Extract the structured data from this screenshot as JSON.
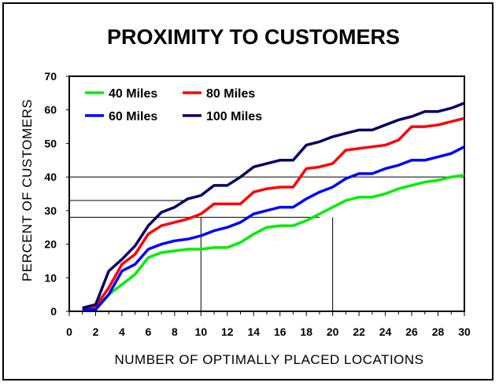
{
  "chart_data": {
    "type": "line",
    "title": "PROXIMITY TO CUSTOMERS",
    "xlabel": "NUMBER OF OPTIMALLY PLACED LOCATIONS",
    "ylabel": "PERCENT OF CUSTOMERS",
    "xlim": [
      0,
      30
    ],
    "ylim": [
      0,
      70
    ],
    "xticks": [
      "0",
      "2",
      "4",
      "6",
      "8",
      "10",
      "12",
      "14",
      "16",
      "18",
      "20",
      "22",
      "24",
      "26",
      "28",
      "30"
    ],
    "yticks": [
      "0",
      "10",
      "20",
      "30",
      "40",
      "50",
      "60",
      "70"
    ],
    "grid": false,
    "legend_position": "top-left",
    "x": [
      1,
      2,
      3,
      4,
      5,
      6,
      7,
      8,
      9,
      10,
      11,
      12,
      13,
      14,
      15,
      16,
      17,
      18,
      19,
      20,
      21,
      22,
      23,
      24,
      25,
      26,
      27,
      28,
      29,
      30
    ],
    "series": [
      {
        "name": "40 Miles",
        "color": "#00ee00",
        "values": [
          0.5,
          1,
          5,
          8,
          11,
          16,
          17.5,
          18,
          18.5,
          18.5,
          19,
          19,
          20.5,
          23,
          25,
          25.5,
          25.5,
          27,
          29,
          31,
          33,
          34,
          34,
          35,
          36.5,
          37.5,
          38.5,
          39,
          40,
          40.5
        ]
      },
      {
        "name": "80 Miles",
        "color": "#ff0000",
        "values": [
          1,
          1.5,
          7,
          14,
          17,
          23,
          25.5,
          26.5,
          27.5,
          29,
          32,
          32,
          32,
          35.5,
          36.5,
          37,
          37,
          42.5,
          43,
          44,
          48,
          48.5,
          49,
          49.5,
          51,
          55,
          55,
          55.5,
          56.5,
          57.5
        ]
      },
      {
        "name": "60 Miles",
        "color": "#0000ff",
        "values": [
          0.5,
          0.5,
          5,
          12,
          14,
          18.5,
          20,
          21,
          21.5,
          22.5,
          24,
          25,
          26.5,
          29,
          30,
          31,
          31,
          33.5,
          35.5,
          37,
          39.5,
          41,
          41,
          42.5,
          43.5,
          45,
          45,
          46,
          47,
          49
        ]
      },
      {
        "name": "100 Miles",
        "color": "#000066",
        "values": [
          1,
          2,
          12,
          15.5,
          19.5,
          25.5,
          29.5,
          31,
          33.5,
          34.5,
          37.5,
          37.5,
          40,
          43,
          44,
          45,
          45,
          49.5,
          50.5,
          52,
          53,
          54,
          54,
          55.5,
          57,
          58,
          59.5,
          59.5,
          60.5,
          62
        ]
      }
    ],
    "reference_lines": [
      {
        "type": "horizontal",
        "y": 40,
        "x_start": 0,
        "x_end": 30
      },
      {
        "type": "horizontal",
        "y": 33,
        "x_start": 0,
        "x_end": 9
      },
      {
        "type": "horizontal",
        "y": 28,
        "x_start": 0,
        "x_end": 19
      },
      {
        "type": "vertical",
        "x": 10,
        "y_start": 0,
        "y_end": 28
      },
      {
        "type": "vertical",
        "x": 20,
        "y_start": 0,
        "y_end": 28
      },
      {
        "type": "vertical",
        "x": 30,
        "y_start": 0,
        "y_end": 40
      }
    ]
  }
}
